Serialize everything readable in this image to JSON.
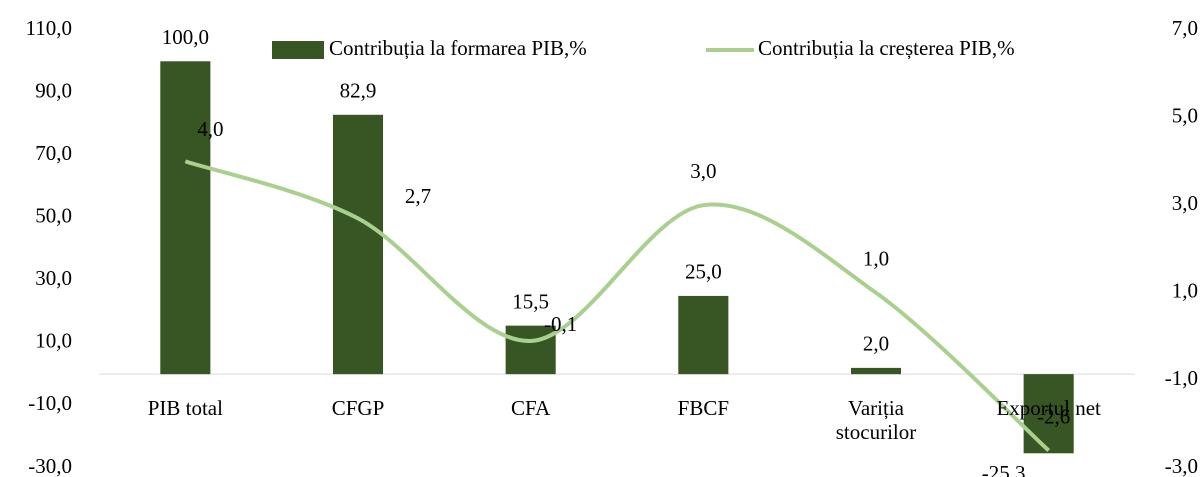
{
  "chart_data": {
    "type": "bar",
    "categories": [
      "PIB total",
      "CFGP",
      "CFA",
      "FBCF",
      "Variția stocurilor",
      "Exportul net"
    ],
    "series": [
      {
        "name": "Contribuția la formarea PIB,%",
        "type": "bar",
        "color": "#375623",
        "values": [
          100.0,
          82.9,
          15.5,
          25.0,
          2.0,
          -25.3
        ],
        "value_labels": [
          "100,0",
          "82,9",
          "15,5",
          "25,0",
          "2,0",
          "-25,3"
        ]
      },
      {
        "name": "Contribuția la creșterea PIB,%",
        "type": "line",
        "axis": "y2",
        "color": "#a9d08e",
        "values": [
          4.0,
          2.7,
          -0.1,
          3.0,
          1.0,
          -2.6
        ],
        "value_labels": [
          "4,0",
          "2,7",
          "-0,1",
          "3,0",
          "1,0",
          "-2,6"
        ]
      }
    ],
    "ylim": [
      -30,
      110
    ],
    "yticks": [
      {
        "value": -30,
        "label": "-30,0"
      },
      {
        "value": -10,
        "label": "-10,0"
      },
      {
        "value": 10,
        "label": "10,0"
      },
      {
        "value": 30,
        "label": "30,0"
      },
      {
        "value": 50,
        "label": "50,0"
      },
      {
        "value": 70,
        "label": "70,0"
      },
      {
        "value": 90,
        "label": "90,0"
      },
      {
        "value": 110,
        "label": "110,0"
      }
    ],
    "y2lim": [
      -3,
      7
    ],
    "y2ticks": [
      {
        "value": -3,
        "label": "-3,0"
      },
      {
        "value": -1,
        "label": "-1,0"
      },
      {
        "value": 1,
        "label": "1,0"
      },
      {
        "value": 3,
        "label": "3,0"
      },
      {
        "value": 5,
        "label": "5,0"
      },
      {
        "value": 7,
        "label": "7,0"
      }
    ],
    "legend": "top"
  }
}
